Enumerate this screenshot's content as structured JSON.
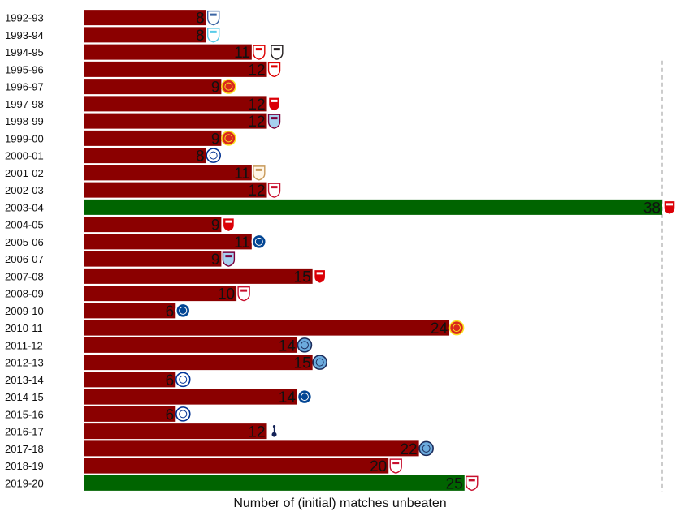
{
  "chart_data": {
    "type": "bar",
    "orientation": "horizontal",
    "xlabel": "Number of (initial) matches unbeaten",
    "xlim": [
      0,
      38
    ],
    "grid": false,
    "reference_line": {
      "value": 38,
      "style": "dashed"
    },
    "categories": [
      "1992-93",
      "1993-94",
      "1994-95",
      "1995-96",
      "1996-97",
      "1997-98",
      "1998-99",
      "1999-00",
      "2000-01",
      "2001-02",
      "2002-03",
      "2003-04",
      "2004-05",
      "2005-06",
      "2006-07",
      "2007-08",
      "2008-09",
      "2009-10",
      "2010-11",
      "2011-12",
      "2012-13",
      "2013-14",
      "2014-15",
      "2015-16",
      "2016-17",
      "2017-18",
      "2018-19",
      "2019-20"
    ],
    "values": [
      8,
      8,
      11,
      12,
      9,
      12,
      12,
      9,
      8,
      11,
      12,
      38,
      9,
      11,
      9,
      15,
      10,
      6,
      24,
      14,
      15,
      6,
      14,
      6,
      12,
      22,
      20,
      25
    ],
    "highlight": [
      false,
      false,
      false,
      false,
      false,
      false,
      false,
      false,
      false,
      false,
      false,
      true,
      false,
      false,
      false,
      false,
      false,
      false,
      false,
      false,
      false,
      false,
      false,
      false,
      false,
      false,
      false,
      true
    ],
    "crest_icons": [
      [
        "ipswich-town-crest-icon"
      ],
      [
        "coventry-city-crest-icon"
      ],
      [
        "nottingham-forest-crest-icon",
        "newcastle-united-crest-icon"
      ],
      [
        "nottingham-forest-crest-icon"
      ],
      [
        "manchester-united-crest-icon"
      ],
      [
        "arsenal-crest-icon"
      ],
      [
        "aston-villa-crest-icon"
      ],
      [
        "manchester-united-crest-icon"
      ],
      [
        "leicester-city-crest-icon"
      ],
      [
        "leeds-united-crest-icon"
      ],
      [
        "liverpool-crest-icon"
      ],
      [
        "arsenal-crest-icon"
      ],
      [
        "arsenal-crest-icon"
      ],
      [
        "chelsea-crest-icon"
      ],
      [
        "aston-villa-crest-icon"
      ],
      [
        "arsenal-crest-icon"
      ],
      [
        "liverpool-crest-icon"
      ],
      [
        "chelsea-crest-icon"
      ],
      [
        "manchester-united-crest-icon"
      ],
      [
        "manchester-city-crest-icon"
      ],
      [
        "manchester-city-crest-icon"
      ],
      [
        "everton-crest-icon"
      ],
      [
        "chelsea-crest-icon"
      ],
      [
        "leicester-city-crest-icon"
      ],
      [
        "tottenham-hotspur-crest-icon"
      ],
      [
        "manchester-city-crest-icon"
      ],
      [
        "liverpool-crest-icon"
      ],
      [
        "liverpool-crest-icon"
      ]
    ]
  },
  "colors": {
    "bar": "#8b0000",
    "highlight_bar": "#006400",
    "reference_line": "#aaaaaa",
    "text": "#111111"
  }
}
